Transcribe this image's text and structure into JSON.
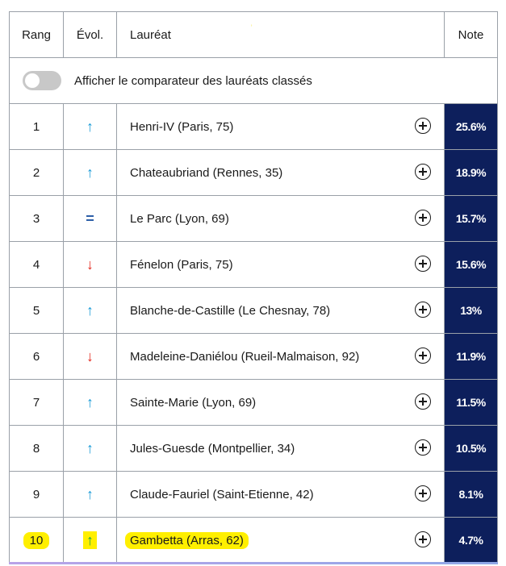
{
  "header": {
    "rang": "Rang",
    "evol": "Évol.",
    "laureat": "Lauréat",
    "note": "Note"
  },
  "toggle": {
    "label": "Afficher le comparateur des lauréats classés",
    "state": "off"
  },
  "rows": [
    {
      "rang": "1",
      "evol": "↑",
      "evol_color": "#1a9bd7",
      "laureat": "Henri-IV (Paris, 75)",
      "note": "25.6%"
    },
    {
      "rang": "2",
      "evol": "↑",
      "evol_color": "#1a9bd7",
      "laureat": "Chateaubriand (Rennes, 35)",
      "note": "18.9%"
    },
    {
      "rang": "3",
      "evol": "=",
      "evol_color": "#2d5fa8",
      "laureat": "Le Parc (Lyon, 69)",
      "note": "15.7%"
    },
    {
      "rang": "4",
      "evol": "↓",
      "evol_color": "#e3261c",
      "laureat": "Fénelon (Paris, 75)",
      "note": "15.6%"
    },
    {
      "rang": "5",
      "evol": "↑",
      "evol_color": "#1a9bd7",
      "laureat": "Blanche-de-Castille (Le Chesnay, 78)",
      "note": "13%"
    },
    {
      "rang": "6",
      "evol": "↓",
      "evol_color": "#e3261c",
      "laureat": "Madeleine-Daniélou (Rueil-Malmaison, 92)",
      "note": "11.9%"
    },
    {
      "rang": "7",
      "evol": "↑",
      "evol_color": "#1a9bd7",
      "laureat": "Sainte-Marie (Lyon, 69)",
      "note": "11.5%"
    },
    {
      "rang": "8",
      "evol": "↑",
      "evol_color": "#1a9bd7",
      "laureat": "Jules-Guesde (Montpellier, 34)",
      "note": "10.5%"
    },
    {
      "rang": "9",
      "evol": "↑",
      "evol_color": "#1a9bd7",
      "laureat": "Claude-Fauriel (Saint-Etienne, 42)",
      "note": "8.1%"
    },
    {
      "rang": "10",
      "evol": "↑",
      "evol_color": "#1aa34a",
      "laureat": "Gambetta (Arras, 62)",
      "note": "4.7%",
      "highlighted": true
    }
  ],
  "colors": {
    "note_bg": "#0d1f5c",
    "highlight": "#ffef00"
  }
}
